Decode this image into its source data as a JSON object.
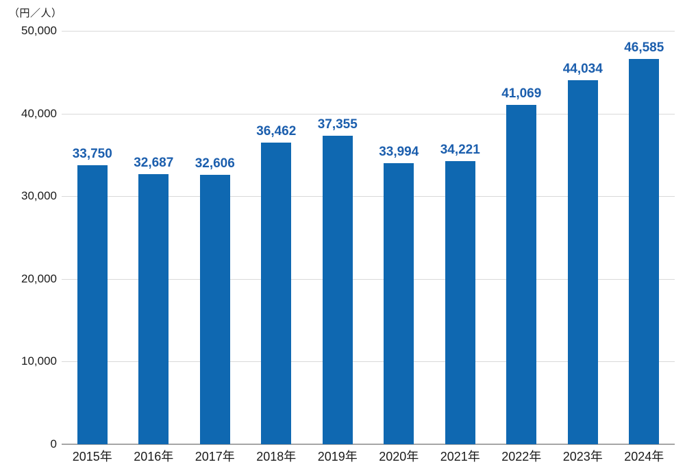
{
  "chart_data": {
    "type": "bar",
    "title": "",
    "unit_label": "（円／人）",
    "categories": [
      "2015年",
      "2016年",
      "2017年",
      "2018年",
      "2019年",
      "2020年",
      "2021年",
      "2022年",
      "2023年",
      "2024年"
    ],
    "values": [
      33750,
      32687,
      32606,
      36462,
      37355,
      33994,
      34221,
      41069,
      44034,
      46585
    ],
    "value_labels": [
      "33,750",
      "32,687",
      "32,606",
      "36,462",
      "37,355",
      "33,994",
      "34,221",
      "41,069",
      "44,034",
      "46,585"
    ],
    "xlabel": "",
    "ylabel": "",
    "ylim": [
      0,
      50000
    ],
    "yticks": [
      0,
      10000,
      20000,
      30000,
      40000,
      50000
    ],
    "ytick_labels": [
      "0",
      "10,000",
      "20,000",
      "30,000",
      "40,000",
      "50,000"
    ],
    "grid": true,
    "legend_position": "none",
    "colors": {
      "bar": "#0f68b1",
      "value_label": "#1b5ead",
      "gridline": "#d9d9d9",
      "baseline": "#a6a6a6",
      "axis_text": "#1a1a1a",
      "background": "#ffffff"
    }
  }
}
